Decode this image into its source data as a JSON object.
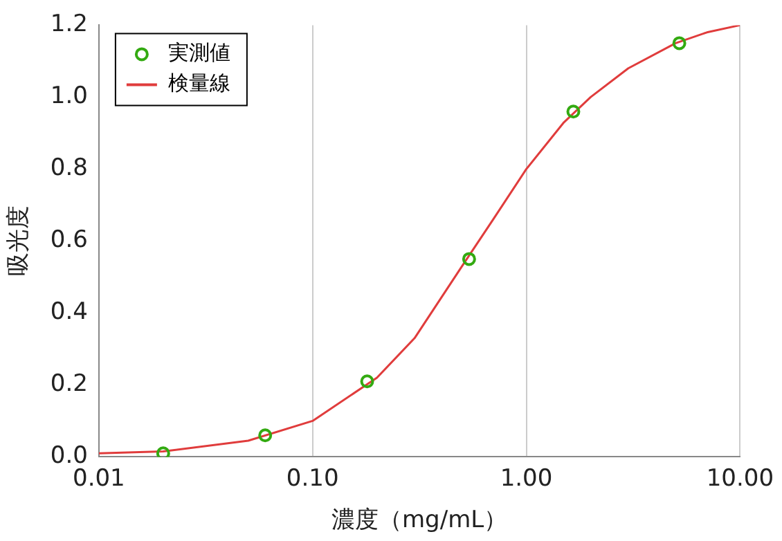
{
  "chart_data": {
    "type": "scatter",
    "xlabel": "濃度（mg/mL）",
    "ylabel": "吸光度",
    "log": "x",
    "grid": "x",
    "legend": "top left",
    "xlim": [
      0.01,
      10
    ],
    "xticks": [
      0.01,
      {
        "value": 0.1,
        "label": "0.10"
      },
      {
        "value": 1,
        "label": "1.00"
      },
      {
        "value": 10,
        "label": "10.00"
      }
    ],
    "ylim": [
      0,
      1.2
    ],
    "yticks": [
      {
        "value": 0,
        "label": "0.0"
      },
      {
        "value": 0.2,
        "label": "0.2"
      },
      {
        "value": 0.4,
        "label": "0.4"
      },
      {
        "value": 0.6,
        "label": "0.6"
      },
      {
        "value": 0.8,
        "label": "0.8"
      },
      {
        "value": 1,
        "label": "1.0"
      },
      {
        "value": 1.2,
        "label": "1.2"
      }
    ],
    "series": [
      {
        "name": "実測値",
        "marker": "circle",
        "color": "#33aa11",
        "x": [
          0.02,
          0.06,
          0.18,
          0.54,
          1.66,
          5.2
        ],
        "values": [
          0.01,
          0.06,
          0.21,
          0.55,
          0.96,
          1.15
        ]
      },
      {
        "name": "検量線",
        "type": "line",
        "marker": "none",
        "line_style": "solid",
        "color": "#e03c3c",
        "x": [
          0.01,
          0.02,
          0.05,
          0.1,
          0.2,
          0.3,
          0.5,
          0.7,
          1,
          1.5,
          2,
          3,
          5,
          7,
          10
        ],
        "values": [
          0.01,
          0.015,
          0.045,
          0.1,
          0.22,
          0.33,
          0.53,
          0.66,
          0.8,
          0.93,
          1.0,
          1.08,
          1.15,
          1.18,
          1.2
        ]
      }
    ]
  }
}
